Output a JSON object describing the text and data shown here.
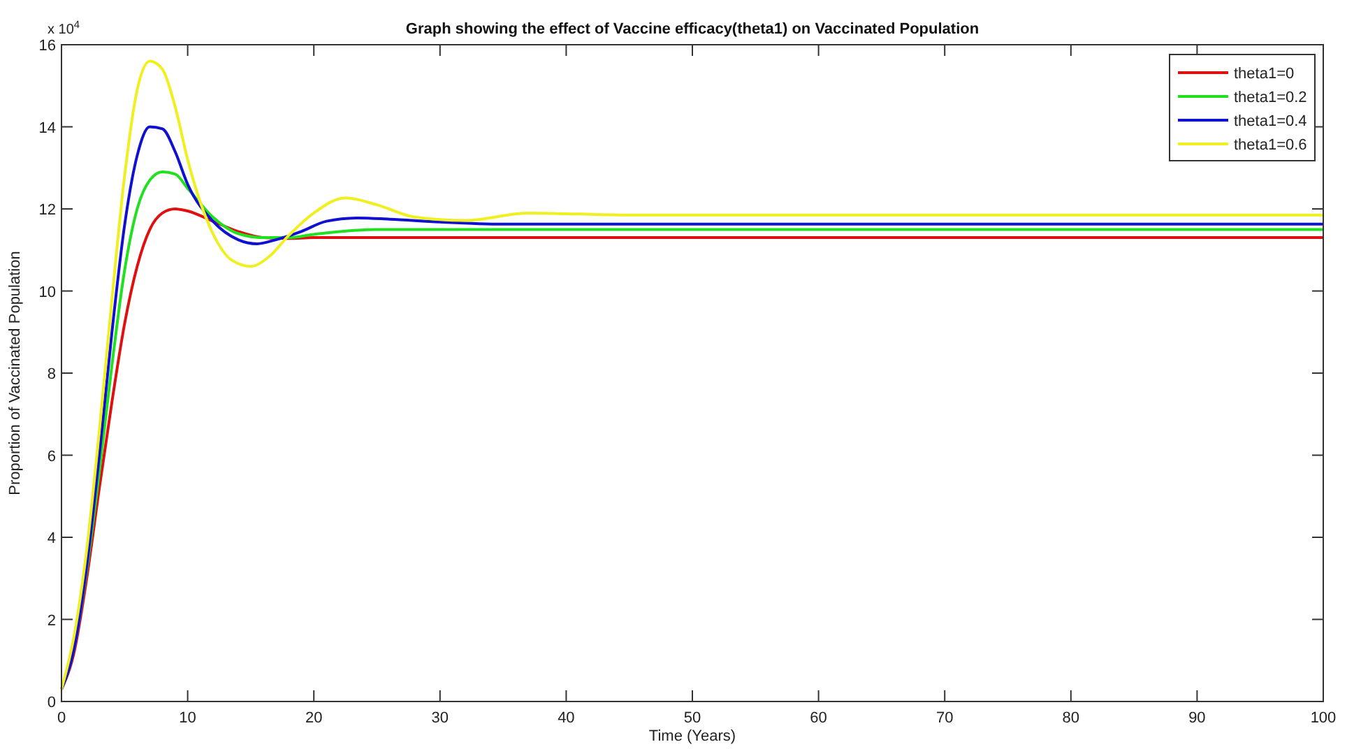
{
  "chart_data": {
    "type": "line",
    "title": "Graph showing the effect of Vaccine efficacy(theta1) on Vaccinated Population",
    "xlabel": "Time (Years)",
    "ylabel": "Proportion of Vaccinated Population",
    "annotations": [
      "x 10$^{4}$"
    ],
    "xlim": [
      0,
      100
    ],
    "xticks": [
      0,
      10,
      20,
      30,
      40,
      50,
      60,
      70,
      80,
      90,
      100
    ],
    "ylim": [
      0,
      16
    ],
    "yticks": [
      0,
      2,
      4,
      6,
      8,
      10,
      12,
      14,
      16
    ],
    "grid": false,
    "legend": "top right",
    "line_style": "solid",
    "marker": "none",
    "series": [
      {
        "name": "theta1=0",
        "color": "#e01010",
        "x": [
          0,
          1,
          2,
          3,
          4,
          5,
          6,
          7,
          8,
          9,
          10,
          12,
          14,
          16,
          18,
          20,
          100
        ],
        "values": [
          0.3,
          1.2,
          3.0,
          5.2,
          7.3,
          9.2,
          10.6,
          11.5,
          11.9,
          12.0,
          11.95,
          11.7,
          11.45,
          11.3,
          11.28,
          11.3,
          11.3
        ]
      },
      {
        "name": "theta1=0.2",
        "color": "#20e020",
        "x": [
          0,
          1,
          2,
          3,
          4,
          5,
          6,
          7,
          8,
          9,
          10,
          12,
          14,
          16,
          18,
          20,
          25,
          30,
          100
        ],
        "values": [
          0.3,
          1.3,
          3.2,
          5.6,
          8.2,
          10.5,
          12.0,
          12.7,
          12.9,
          12.85,
          12.5,
          11.8,
          11.4,
          11.3,
          11.3,
          11.38,
          11.5,
          11.5,
          11.5
        ]
      },
      {
        "name": "theta1=0.4",
        "color": "#1010d0",
        "x": [
          0,
          1,
          2,
          3,
          4,
          5,
          6,
          7,
          8,
          9,
          10,
          12,
          14,
          15.5,
          17,
          19,
          21,
          23.5,
          26,
          30,
          35,
          100
        ],
        "values": [
          0.3,
          1.3,
          3.3,
          6.0,
          9.0,
          11.6,
          13.3,
          14.0,
          13.95,
          13.4,
          12.6,
          11.7,
          11.25,
          11.15,
          11.25,
          11.45,
          11.7,
          11.78,
          11.75,
          11.68,
          11.63,
          11.63
        ]
      },
      {
        "name": "theta1=0.6",
        "color": "#f0f020",
        "x": [
          0,
          1,
          2,
          3,
          4,
          5,
          6,
          7,
          8,
          9,
          10,
          12,
          13.5,
          15,
          16.5,
          18,
          20,
          22.5,
          25,
          28,
          32,
          37,
          45,
          100
        ],
        "values": [
          0.3,
          1.6,
          3.7,
          6.6,
          9.8,
          12.8,
          14.9,
          15.6,
          15.4,
          14.5,
          13.2,
          11.4,
          10.75,
          10.6,
          10.85,
          11.35,
          11.9,
          12.27,
          12.1,
          11.8,
          11.72,
          11.9,
          11.85,
          11.85
        ]
      }
    ]
  }
}
